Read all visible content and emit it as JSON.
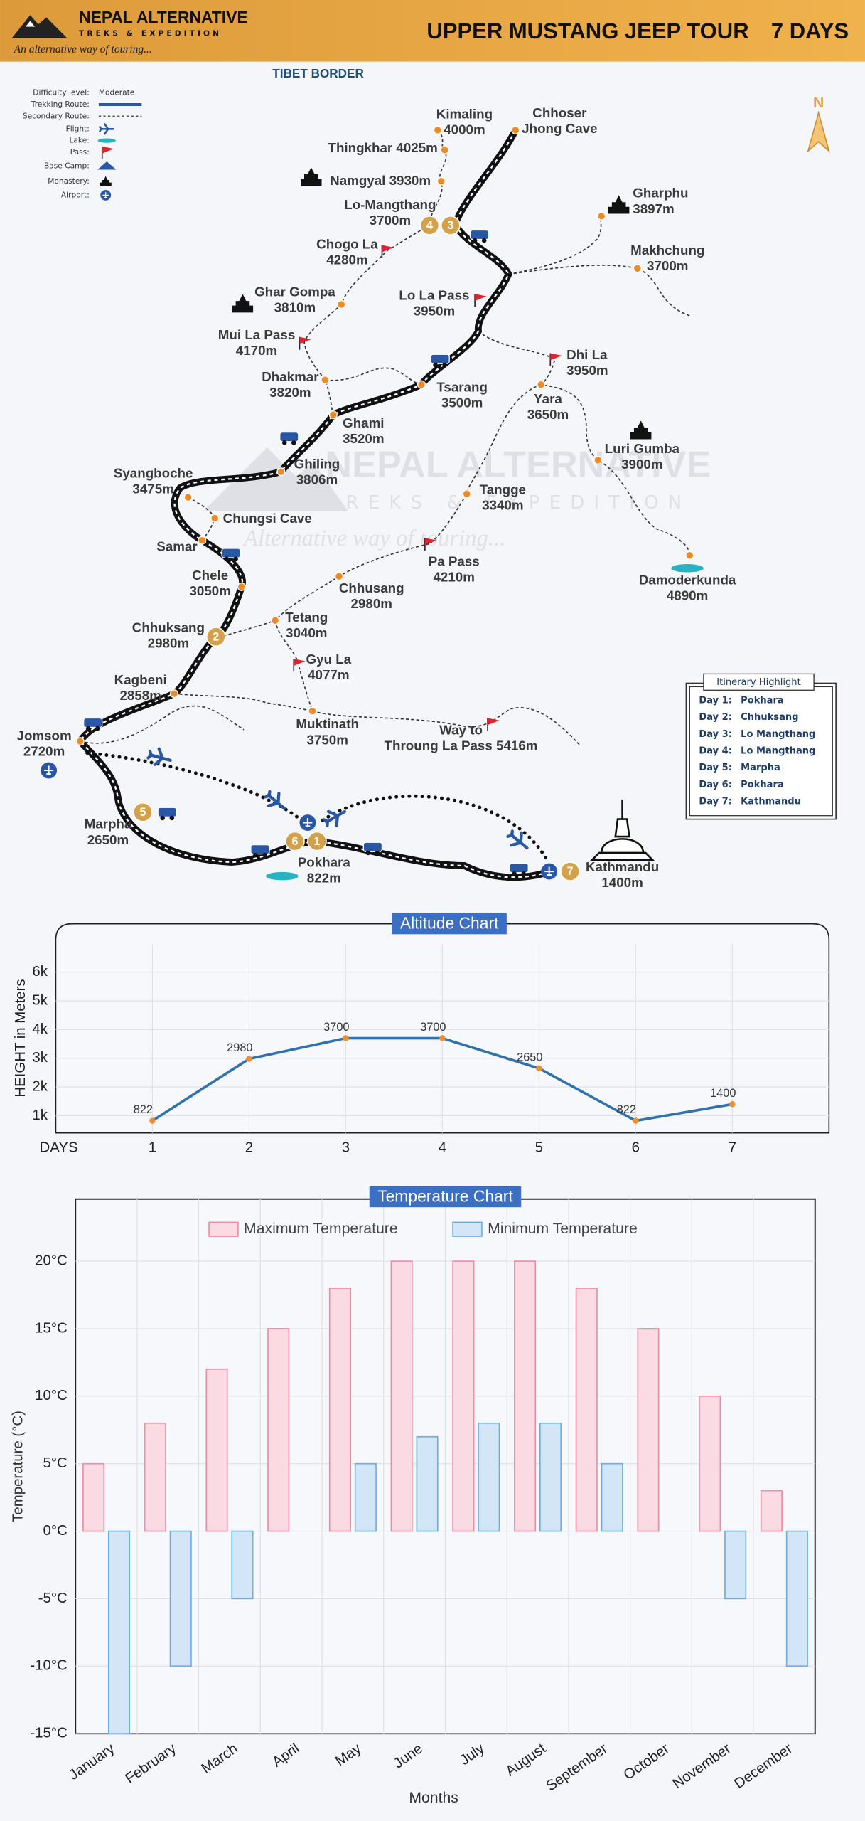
{
  "header": {
    "brand": "NEPAL ALTERNATIVE",
    "subtitle": "TREKS & EXPEDITION",
    "tagline": "An alternative way of touring...",
    "title": "UPPER MUSTANG JEEP TOUR",
    "duration": "7 DAYS"
  },
  "legend": [
    {
      "label": "Difficulty level:",
      "value": "Moderate"
    },
    {
      "label": "Trekking Route:"
    },
    {
      "label": "Secondary Route:"
    },
    {
      "label": "Flight:"
    },
    {
      "label": "Lake:"
    },
    {
      "label": "Pass:"
    },
    {
      "label": "Base Camp:"
    },
    {
      "label": "Monastery:"
    },
    {
      "label": "Airport:"
    }
  ],
  "map": {
    "border": "TIBET BORDER",
    "north": "N",
    "watermark": {
      "title": "NEPAL ALTERNATIVE",
      "subtitle": "TREKS & EXPEDITION",
      "tagline": "Alternative way of touring..."
    },
    "places": [
      {
        "lines": [
          "Kimaling",
          "4000m"
        ]
      },
      {
        "lines": [
          "Chhoser",
          "Jhong Cave"
        ]
      },
      {
        "lines": [
          "Thingkhar 4025m"
        ]
      },
      {
        "lines": [
          "Namgyal 3930m"
        ]
      },
      {
        "lines": [
          "Lo-Mangthang",
          "3700m"
        ]
      },
      {
        "lines": [
          "Gharphu",
          "3897m"
        ]
      },
      {
        "lines": [
          "Chogo La",
          "4280m"
        ]
      },
      {
        "lines": [
          "Makhchung",
          "3700m"
        ]
      },
      {
        "lines": [
          "Ghar Gompa",
          "3810m"
        ]
      },
      {
        "lines": [
          "Lo La Pass",
          "3950m"
        ]
      },
      {
        "lines": [
          "Mui La Pass",
          "4170m"
        ]
      },
      {
        "lines": [
          "Dhi La",
          "3950m"
        ]
      },
      {
        "lines": [
          "Dhakmar",
          "3820m"
        ]
      },
      {
        "lines": [
          "Tsarang",
          "3500m"
        ]
      },
      {
        "lines": [
          "Yara",
          "3650m"
        ]
      },
      {
        "lines": [
          "Ghami",
          "3520m"
        ]
      },
      {
        "lines": [
          "Luri Gumba",
          "3900m"
        ]
      },
      {
        "lines": [
          "Ghiling",
          "3806m"
        ]
      },
      {
        "lines": [
          "Syangboche",
          "3475m"
        ]
      },
      {
        "lines": [
          "Tangge",
          "3340m"
        ]
      },
      {
        "lines": [
          "Chungsi Cave"
        ]
      },
      {
        "lines": [
          "Samar"
        ]
      },
      {
        "lines": [
          "Pa Pass",
          "4210m"
        ]
      },
      {
        "lines": [
          "Damoderkunda",
          "4890m"
        ]
      },
      {
        "lines": [
          "Chele",
          "3050m"
        ]
      },
      {
        "lines": [
          "Chhusang",
          "2980m"
        ]
      },
      {
        "lines": [
          "Tetang",
          "3040m"
        ]
      },
      {
        "lines": [
          "Chhuksang",
          "2980m"
        ]
      },
      {
        "lines": [
          "Gyu La",
          "4077m"
        ]
      },
      {
        "lines": [
          "Kagbeni",
          "2858m"
        ]
      },
      {
        "lines": [
          "Muktinath",
          "3750m"
        ]
      },
      {
        "lines": [
          "Way to",
          "Throung La Pass 5416m"
        ]
      },
      {
        "lines": [
          "Jomsom",
          "2720m"
        ]
      },
      {
        "lines": [
          "Marpha",
          "2650m"
        ]
      },
      {
        "lines": [
          "Pokhara",
          "822m"
        ]
      },
      {
        "lines": [
          "Kathmandu",
          "1400m"
        ]
      }
    ],
    "day_badges": [
      "4",
      "3",
      "2",
      "5",
      "6",
      "1",
      "7"
    ]
  },
  "itinerary": {
    "title": "Itinerary Highlight",
    "rows": [
      {
        "day": "Day 1:",
        "place": "Pokhara"
      },
      {
        "day": "Day 2:",
        "place": "Chhuksang"
      },
      {
        "day": "Day 3:",
        "place": "Lo Mangthang"
      },
      {
        "day": "Day 4:",
        "place": "Lo Mangthang"
      },
      {
        "day": "Day 5:",
        "place": "Marpha"
      },
      {
        "day": "Day 6:",
        "place": "Pokhara"
      },
      {
        "day": "Day 7:",
        "place": "Kathmandu"
      }
    ]
  },
  "chart_data": [
    {
      "type": "line",
      "title": "Altitude Chart",
      "xlabel": "DAYS",
      "ylabel": "HEIGHT in Meters",
      "x": [
        1,
        2,
        3,
        4,
        5,
        6,
        7
      ],
      "values": [
        822,
        2980,
        3700,
        3700,
        2650,
        822,
        1400
      ],
      "color": "#2f72ad",
      "marker_color": "#f0902a",
      "xlim": [
        0,
        8
      ],
      "ylim": [
        400,
        7000
      ],
      "xticks": [
        1,
        2,
        3,
        4,
        5,
        6,
        7
      ],
      "yticks": [
        {
          "value": 1000,
          "label": "1k"
        },
        {
          "value": 2000,
          "label": "2k"
        },
        {
          "value": 3000,
          "label": "3k"
        },
        {
          "value": 4000,
          "label": "4k"
        },
        {
          "value": 5000,
          "label": "5k"
        },
        {
          "value": 6000,
          "label": "6k"
        }
      ],
      "grid": true
    },
    {
      "type": "bar",
      "title": "Temperature Chart",
      "xlabel": "Months",
      "ylabel": "Temperature (°C)",
      "categories": [
        "January",
        "February",
        "March",
        "April",
        "May",
        "June",
        "July",
        "August",
        "September",
        "October",
        "November",
        "December"
      ],
      "series": [
        {
          "name": "Maximum Temperature",
          "color": "#fadbe3",
          "edge_color": "#ee8aa2",
          "values": [
            5,
            8,
            12,
            15,
            18,
            20,
            20,
            20,
            18,
            15,
            10,
            3
          ]
        },
        {
          "name": "Minimum Temperature",
          "color": "#d3e6f8",
          "edge_color": "#6aaee0",
          "values": [
            -15,
            -10,
            -5,
            0,
            5,
            7,
            8,
            8,
            5,
            0,
            -5,
            -10
          ]
        }
      ],
      "ylim": [
        -15,
        24.6
      ],
      "yticks": [
        {
          "value": -15,
          "label": "-15°C"
        },
        {
          "value": -10,
          "label": "-10°C"
        },
        {
          "value": -5,
          "label": "-5°C"
        },
        {
          "value": 0,
          "label": "0°C"
        },
        {
          "value": 5,
          "label": "5°C"
        },
        {
          "value": 10,
          "label": "10°C"
        },
        {
          "value": 15,
          "label": "15°C"
        },
        {
          "value": 20,
          "label": "20°C"
        }
      ],
      "grid": true,
      "legend": "top"
    }
  ]
}
